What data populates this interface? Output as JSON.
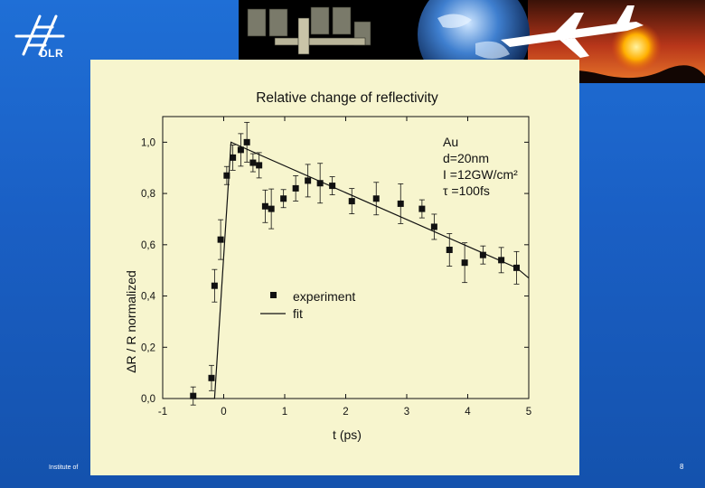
{
  "logo": {
    "text": "DLR"
  },
  "footer": {
    "institute": "Institute of",
    "page": "8"
  },
  "chart_data": {
    "type": "scatter",
    "title": "Relative change of reflectivity",
    "xlabel": "t (ps)",
    "ylabel": "ΔR / R normalized",
    "xlim": [
      -1,
      5
    ],
    "ylim": [
      0,
      1.1
    ],
    "x_ticks": [
      "-1",
      "0",
      "1",
      "2",
      "3",
      "4",
      "5"
    ],
    "y_ticks": [
      "0,0",
      "0,2",
      "0,4",
      "0,6",
      "0,8",
      "1,0"
    ],
    "series": [
      {
        "name": "experiment",
        "marker": "square",
        "x": [
          -0.5,
          -0.2,
          -0.15,
          -0.05,
          0.05,
          0.15,
          0.28,
          0.38,
          0.48,
          0.58,
          0.68,
          0.78,
          0.98,
          1.18,
          1.38,
          1.58,
          1.78,
          2.1,
          2.5,
          2.9,
          3.25,
          3.45,
          3.7,
          3.95,
          4.25,
          4.55,
          4.8
        ],
        "y": [
          0.01,
          0.08,
          0.44,
          0.62,
          0.87,
          0.94,
          0.97,
          1.0,
          0.92,
          0.91,
          0.75,
          0.74,
          0.78,
          0.82,
          0.85,
          0.84,
          0.83,
          0.77,
          0.78,
          0.76,
          0.74,
          0.67,
          0.58,
          0.53,
          0.56,
          0.54,
          0.51
        ]
      },
      {
        "name": "fit",
        "marker": "line",
        "x": [
          -0.5,
          -0.15,
          0.12,
          4.8,
          5.0
        ],
        "y": [
          0.0,
          0.0,
          1.0,
          0.51,
          0.47
        ]
      }
    ],
    "annotation": {
      "lines": [
        "Au",
        "d=20nm",
        "I =12GW/cm²",
        "τ =100fs"
      ]
    },
    "legend_labels": [
      "experiment",
      "fit"
    ],
    "colors": {
      "panel_bg": "#f7f5ce",
      "ink": "#111111",
      "slide_bg": "#1a5fc4"
    }
  }
}
